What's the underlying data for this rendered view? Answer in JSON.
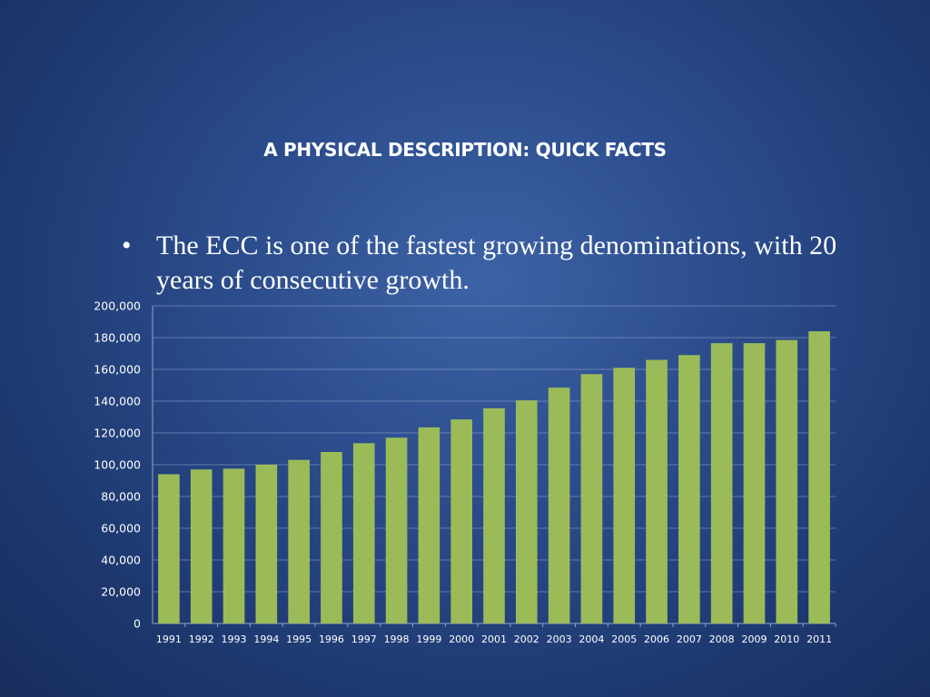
{
  "slide": {
    "title": "A PHYSICAL DESCRIPTION: QUICK FACTS",
    "bullet_symbol": "•",
    "bullet_text": "The ECC is one of the fastest growing denominations, with 20 years of consecutive growth."
  },
  "colors": {
    "bar": "#9bbb59",
    "grid": "#8fa6cc",
    "text": "#ffffff"
  },
  "chart_data": {
    "type": "bar",
    "title": "",
    "xlabel": "",
    "ylabel": "",
    "categories": [
      "1991",
      "1992",
      "1993",
      "1994",
      "1995",
      "1996",
      "1997",
      "1998",
      "1999",
      "2000",
      "2001",
      "2002",
      "2003",
      "2004",
      "2005",
      "2006",
      "2007",
      "2008",
      "2009",
      "2010",
      "2011"
    ],
    "values": [
      94000,
      97000,
      97500,
      100000,
      103000,
      108000,
      113500,
      117000,
      123500,
      128500,
      135500,
      140500,
      148500,
      157000,
      161000,
      166000,
      169000,
      176500,
      176500,
      178500,
      184000
    ],
    "ylim": [
      0,
      200000
    ],
    "yticks": [
      "0",
      "20,000",
      "40,000",
      "60,000",
      "80,000",
      "100,000",
      "120,000",
      "140,000",
      "160,000",
      "180,000",
      "200,000"
    ],
    "grid": true,
    "legend": "none"
  }
}
